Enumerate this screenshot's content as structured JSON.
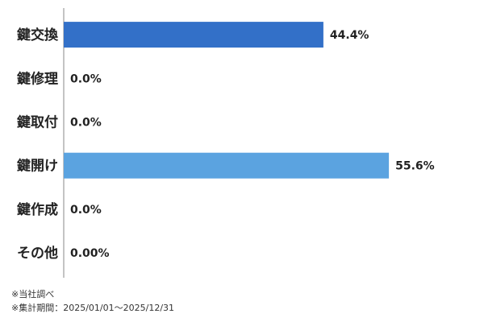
{
  "chart_data": {
    "type": "hbar",
    "categories": [
      "鍵交換",
      "鍵修理",
      "鍵取付",
      "鍵開け",
      "鍵作成",
      "その他"
    ],
    "values": [
      44.4,
      0.0,
      0.0,
      55.6,
      0.0,
      0.0
    ],
    "value_labels": [
      "44.4%",
      "0.0%",
      "0.0%",
      "55.6%",
      "0.0%",
      "0.00%"
    ],
    "colors": [
      "#3370c8",
      "#3370c8",
      "#3370c8",
      "#5ba3e0",
      "#3370c8",
      "#3370c8"
    ],
    "notes": [
      "※当社調べ",
      "※集計期間：2025/01/01～2025/12/31"
    ]
  }
}
